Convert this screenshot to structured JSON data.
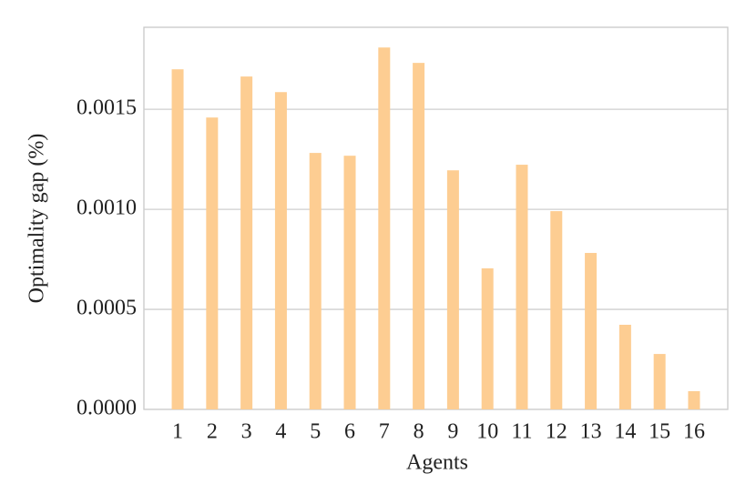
{
  "chart_data": {
    "type": "bar",
    "xlabel": "Agents",
    "ylabel": "Optimality gap (%)",
    "categories": [
      "1",
      "2",
      "3",
      "4",
      "5",
      "6",
      "7",
      "8",
      "9",
      "10",
      "11",
      "12",
      "13",
      "14",
      "15",
      "16"
    ],
    "values": [
      0.0017,
      0.001459,
      0.001664,
      0.001586,
      0.001282,
      0.001268,
      0.001809,
      0.001732,
      0.001195,
      0.000705,
      0.001223,
      0.000991,
      0.000782,
      0.000423,
      0.000277,
      9.1e-05
    ],
    "color": "#fdcd92",
    "ylim": [
      0,
      0.00191
    ],
    "yticks": [
      {
        "value": 0,
        "label": "0.0000"
      },
      {
        "value": 0.0005,
        "label": "0.0005"
      },
      {
        "value": 0.001,
        "label": "0.0010"
      },
      {
        "value": 0.0015,
        "label": "0.0015"
      }
    ],
    "grid": true
  }
}
